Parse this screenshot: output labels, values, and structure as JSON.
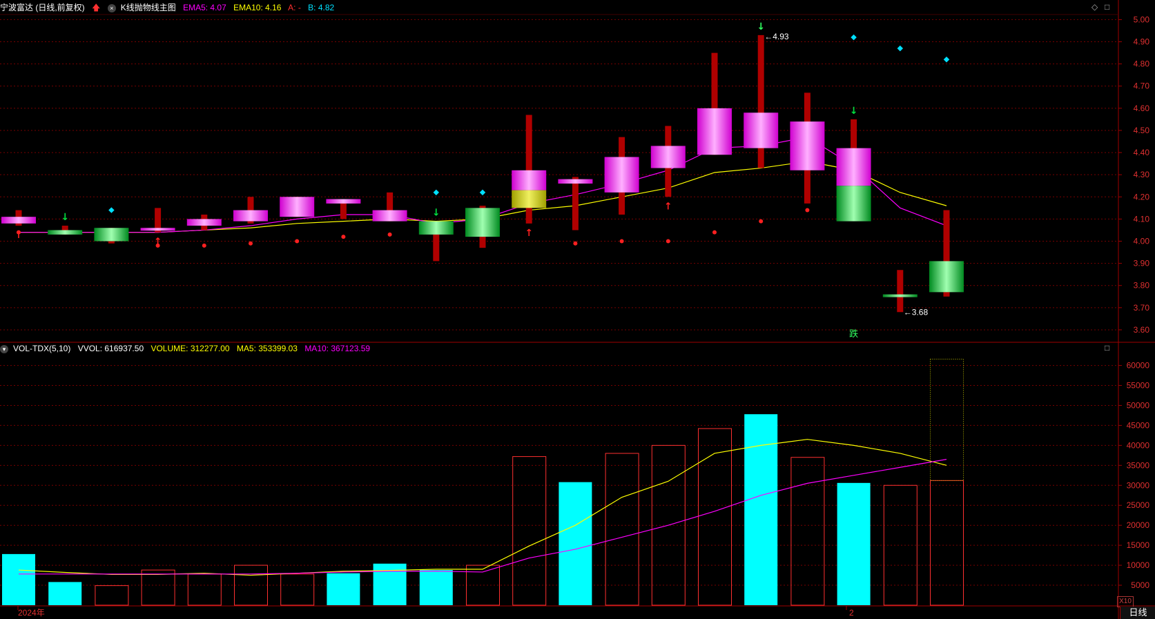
{
  "header": {
    "stock_title": "宁波富达 (日线,前复权)",
    "indicator_name": "K线抛物线主图",
    "ema5_label": "EMA5: 4.07",
    "ema10_label": "EMA10: 4.16",
    "a_label": "A: -",
    "b_label": "B: 4.82"
  },
  "volume_header": {
    "name": "VOL-TDX(5,10)",
    "vvol": "VVOL: 616937.50",
    "volume": "VOLUME: 312277.00",
    "ma5": "MA5: 353399.03",
    "ma10": "MA10: 367123.59"
  },
  "footer": {
    "year_label": "2024年",
    "month_label": "2",
    "period_label": "日线",
    "zoom_label": "X10"
  },
  "colors": {
    "up": "#ff00ff",
    "down": "#00d840",
    "wick": "#b00000",
    "ema5": "#ff00ff",
    "ema10": "#ffff00",
    "vol_down": "#00ffff",
    "vol_up_outline": "#ff3030",
    "grid": "#7a0000"
  },
  "chart_data": [
    {
      "type": "candlestick",
      "price_axis_ticks": [
        "5.00",
        "4.90",
        "4.80",
        "4.70",
        "4.60",
        "4.50",
        "4.40",
        "4.30",
        "4.20",
        "4.10",
        "4.00",
        "3.90",
        "3.80",
        "3.70",
        "3.60"
      ],
      "ylim": [
        3.55,
        5.02
      ],
      "candles": [
        {
          "o": 4.08,
          "h": 4.14,
          "l": 4.07,
          "c": 4.11,
          "dot": 4.04,
          "arrow": "up-red"
        },
        {
          "o": 4.05,
          "h": 4.07,
          "l": 4.03,
          "c": 4.03,
          "arrow": "down-green"
        },
        {
          "o": 4.06,
          "h": 4.06,
          "l": 3.99,
          "c": 4.0,
          "dot": 4.14
        },
        {
          "o": 4.05,
          "h": 4.15,
          "l": 4.04,
          "c": 4.06,
          "dot": 3.98,
          "arrow": "up-red"
        },
        {
          "o": 4.07,
          "h": 4.12,
          "l": 4.05,
          "c": 4.1,
          "dot": 3.98
        },
        {
          "o": 4.09,
          "h": 4.2,
          "l": 4.08,
          "c": 4.14,
          "dot": 3.99
        },
        {
          "o": 4.11,
          "h": 4.2,
          "l": 4.11,
          "c": 4.2,
          "dot": 4.0
        },
        {
          "o": 4.17,
          "h": 4.18,
          "l": 4.1,
          "c": 4.19,
          "dot": 4.02
        },
        {
          "o": 4.09,
          "h": 4.22,
          "l": 4.09,
          "c": 4.14,
          "dot": 4.03
        },
        {
          "o": 4.09,
          "h": 4.09,
          "l": 3.91,
          "c": 4.03,
          "dot": 4.22,
          "arrow": "down-green"
        },
        {
          "o": 4.15,
          "h": 4.16,
          "l": 3.97,
          "c": 4.02,
          "dot": 4.22
        },
        {
          "o": 4.15,
          "h": 4.57,
          "l": 4.08,
          "c": 4.32,
          "arrow": "up-red",
          "mid": 4.23
        },
        {
          "o": 4.26,
          "h": 4.29,
          "l": 4.05,
          "c": 4.28,
          "dot": 3.99
        },
        {
          "o": 4.22,
          "h": 4.47,
          "l": 4.12,
          "c": 4.38,
          "dot": 4.0
        },
        {
          "o": 4.33,
          "h": 4.52,
          "l": 4.2,
          "c": 4.43,
          "dot": 4.0,
          "arrow": "up-red"
        },
        {
          "o": 4.39,
          "h": 4.85,
          "l": 4.39,
          "c": 4.6,
          "dot": 4.04
        },
        {
          "o": 4.42,
          "h": 4.93,
          "l": 4.33,
          "c": 4.58,
          "dot": 4.09,
          "arrow": "down-green-outline",
          "label": "4.93"
        },
        {
          "o": 4.32,
          "h": 4.67,
          "l": 4.17,
          "c": 4.54,
          "dot": 4.14
        },
        {
          "o": 4.09,
          "h": 4.55,
          "l": 4.1,
          "c": 4.42,
          "mid": 4.25,
          "dot": 4.92,
          "arrow": "down-green"
        },
        {
          "o": 3.76,
          "h": 3.87,
          "l": 3.68,
          "c": 3.75,
          "dot": 4.87,
          "label": "3.68"
        },
        {
          "o": 3.91,
          "h": 4.14,
          "l": 3.75,
          "c": 3.77,
          "dot": 4.82
        }
      ],
      "ema5": [
        4.04,
        4.04,
        4.04,
        4.04,
        4.05,
        4.07,
        4.1,
        4.12,
        4.12,
        4.08,
        4.1,
        4.17,
        4.21,
        4.26,
        4.32,
        4.42,
        4.43,
        4.47,
        4.34,
        4.15,
        4.07
      ],
      "ema10": [
        4.04,
        4.04,
        4.04,
        4.04,
        4.05,
        4.06,
        4.08,
        4.09,
        4.1,
        4.09,
        4.1,
        4.14,
        4.16,
        4.2,
        4.24,
        4.31,
        4.33,
        4.36,
        4.32,
        4.22,
        4.16
      ],
      "signal_text": "跌",
      "signal_index": 18
    },
    {
      "type": "bar",
      "ylim": [
        0,
        62000
      ],
      "y_ticks": [
        "60000",
        "55000",
        "50000",
        "45000",
        "40000",
        "35000",
        "30000",
        "25000",
        "20000",
        "15000",
        "10000",
        "5000"
      ],
      "volumes": [
        12800,
        5800,
        4900,
        8800,
        7800,
        10000,
        7800,
        8000,
        10400,
        8800,
        10000,
        37200,
        30800,
        38000,
        40000,
        44200,
        47800,
        37000,
        30600,
        30000,
        31200
      ],
      "projected_volume": 61600,
      "up": [
        false,
        false,
        true,
        true,
        true,
        true,
        true,
        false,
        false,
        false,
        true,
        true,
        false,
        true,
        true,
        true,
        false,
        true,
        false,
        true,
        true
      ],
      "ma5": [
        8800,
        8200,
        7700,
        7700,
        8000,
        7500,
        8000,
        8500,
        8700,
        9000,
        9000,
        14800,
        20000,
        27000,
        31000,
        38000,
        40000,
        41500,
        40000,
        38000,
        35000
      ],
      "ma10": [
        7800,
        7800,
        7800,
        7800,
        7800,
        7800,
        8000,
        8300,
        8500,
        8500,
        8300,
        11800,
        14000,
        17000,
        20000,
        23500,
        27500,
        30500,
        32500,
        34500,
        36500
      ]
    }
  ]
}
